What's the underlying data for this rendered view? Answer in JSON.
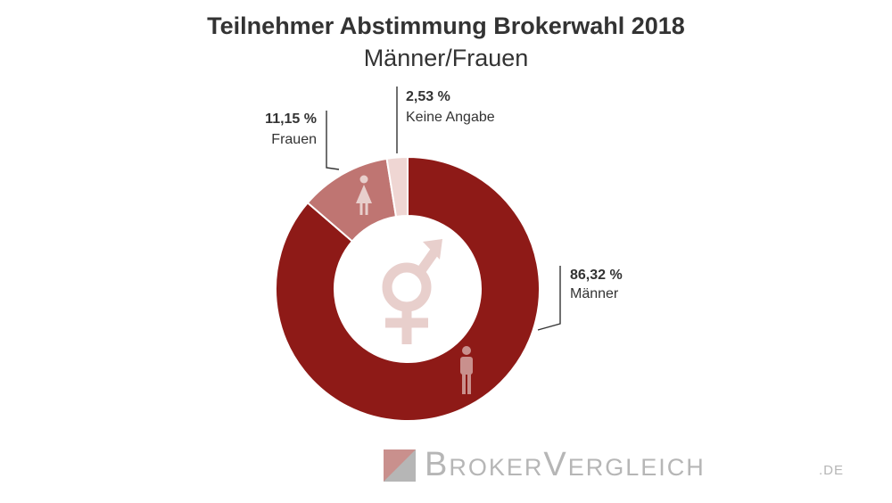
{
  "chart_data": {
    "type": "pie",
    "title": "Teilnehmer Abstimmung Brokerwahl 2018",
    "subtitle": "Männer/Frauen",
    "slices": [
      {
        "label": "Männer",
        "value": 86.32,
        "value_label": "86,32 %",
        "color": "#8e1a17"
      },
      {
        "label": "Frauen",
        "value": 11.15,
        "value_label": "11,15 %",
        "color": "#bf7572"
      },
      {
        "label": "Keine Angabe",
        "value": 2.53,
        "value_label": "2,53 %",
        "color": "#efd6d3"
      }
    ]
  },
  "brand": {
    "name_prefix_b": "B",
    "name_prefix_rest": "ROKER",
    "name_suffix_v": "V",
    "name_suffix_rest": "ERGLEICH",
    "domain": ".DE"
  },
  "icons": {
    "center": "gender-symbol-icon",
    "male": "male-person-icon",
    "female": "female-person-icon"
  },
  "colors": {
    "icon_tint": "#e8cfcc",
    "logo_gray": "#b6b6b6",
    "logo_accent": "#c9908d"
  }
}
